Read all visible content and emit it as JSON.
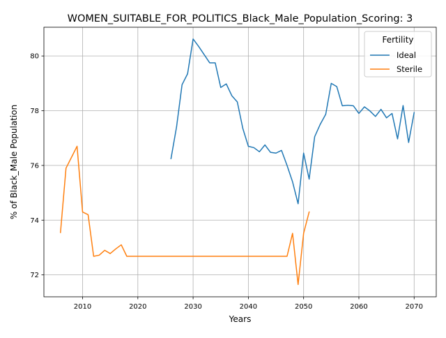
{
  "chart_data": {
    "type": "line",
    "title": "WOMEN_SUITABLE_FOR_POLITICS_Black_Male_Population_Scoring: 3",
    "xlabel": "Years",
    "ylabel": "% of Black_Male Population",
    "xlim": [
      2003,
      2074
    ],
    "ylim": [
      71.2,
      81.05
    ],
    "x_ticks": [
      2010,
      2020,
      2030,
      2040,
      2050,
      2060,
      2070
    ],
    "y_ticks": [
      72,
      74,
      76,
      78,
      80
    ],
    "grid": true,
    "legend": {
      "title": "Fertility",
      "position": "top-right"
    },
    "series": [
      {
        "name": "Ideal",
        "color": "#1f77b4",
        "x": [
          2026,
          2027,
          2028,
          2029,
          2030,
          2031,
          2032,
          2033,
          2034,
          2035,
          2036,
          2037,
          2038,
          2039,
          2040,
          2041,
          2042,
          2043,
          2044,
          2045,
          2046,
          2047,
          2048,
          2049,
          2050,
          2051,
          2052,
          2053,
          2054,
          2055,
          2056,
          2057,
          2058,
          2059,
          2060,
          2061,
          2062,
          2063,
          2064,
          2065,
          2066,
          2067,
          2068,
          2069,
          2070
        ],
        "y": [
          76.25,
          77.4,
          78.95,
          79.35,
          80.62,
          80.35,
          80.05,
          79.75,
          79.75,
          78.85,
          78.98,
          78.55,
          78.32,
          77.35,
          76.7,
          76.65,
          76.5,
          76.75,
          76.48,
          76.45,
          76.55,
          76.0,
          75.4,
          74.6,
          76.45,
          75.5,
          77.05,
          77.5,
          77.87,
          79.0,
          78.88,
          78.18,
          78.2,
          78.18,
          77.9,
          78.14,
          77.99,
          77.79,
          78.05,
          77.74,
          77.9,
          76.97,
          78.19,
          76.84,
          77.93
        ]
      },
      {
        "name": "Sterile",
        "color": "#ff7f0e",
        "x": [
          2006,
          2007,
          2008,
          2009,
          2010,
          2011,
          2012,
          2013,
          2014,
          2015,
          2016,
          2017,
          2018,
          2019,
          2020,
          2021,
          2022,
          2023,
          2024,
          2025,
          2026,
          2027,
          2028,
          2029,
          2030,
          2031,
          2032,
          2033,
          2034,
          2035,
          2036,
          2037,
          2038,
          2039,
          2040,
          2041,
          2042,
          2043,
          2044,
          2045,
          2046,
          2047,
          2048,
          2049,
          2050,
          2051
        ],
        "y": [
          73.55,
          75.9,
          76.3,
          76.7,
          74.3,
          74.2,
          72.68,
          72.72,
          72.9,
          72.78,
          72.95,
          73.1,
          72.68,
          72.68,
          72.68,
          72.68,
          72.68,
          72.68,
          72.68,
          72.68,
          72.68,
          72.68,
          72.68,
          72.68,
          72.68,
          72.68,
          72.68,
          72.68,
          72.68,
          72.68,
          72.68,
          72.68,
          72.68,
          72.68,
          72.68,
          72.68,
          72.68,
          72.68,
          72.68,
          72.68,
          72.68,
          72.68,
          73.52,
          71.65,
          73.52,
          74.3
        ]
      }
    ]
  }
}
